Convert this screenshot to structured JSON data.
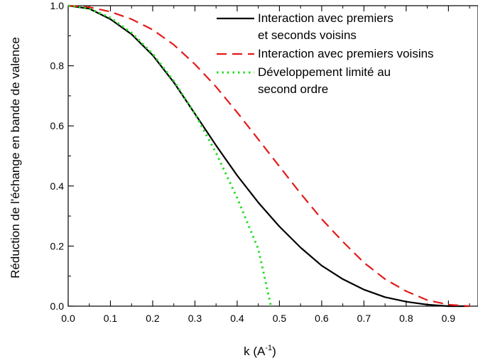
{
  "chart_data": {
    "type": "line",
    "xlabel": "k (A",
    "xlabel_sup": "-1",
    "xlabel_close": ")",
    "ylabel": "Réduction de l'échange en bande de valence",
    "xlim": [
      0.0,
      0.97
    ],
    "ylim": [
      0.0,
      1.0
    ],
    "grid": false,
    "legend_position": "top-right",
    "x_ticks": [
      0.0,
      0.1,
      0.2,
      0.3,
      0.4,
      0.5,
      0.6,
      0.7,
      0.8,
      0.9
    ],
    "x_tick_labels": [
      "0.0",
      "0.1",
      "0.2",
      "0.3",
      "0.4",
      "0.5",
      "0.6",
      "0.7",
      "0.8",
      "0.9"
    ],
    "y_ticks": [
      0.0,
      0.2,
      0.4,
      0.6,
      0.8,
      1.0
    ],
    "y_tick_labels": [
      "0.0",
      "0.2",
      "0.4",
      "0.6",
      "0.8",
      "1.0"
    ],
    "series": [
      {
        "name_lines": [
          "Interaction avec premiers",
          "et seconds voisins"
        ],
        "style": "solid",
        "color": "#000000",
        "x": [
          0.0,
          0.05,
          0.1,
          0.15,
          0.2,
          0.25,
          0.3,
          0.35,
          0.4,
          0.45,
          0.5,
          0.55,
          0.6,
          0.65,
          0.7,
          0.75,
          0.8,
          0.85,
          0.9,
          0.95
        ],
        "y": [
          1.0,
          0.99,
          0.955,
          0.905,
          0.835,
          0.745,
          0.64,
          0.535,
          0.435,
          0.345,
          0.265,
          0.195,
          0.135,
          0.09,
          0.055,
          0.03,
          0.015,
          0.005,
          0.0,
          0.0
        ]
      },
      {
        "name_lines": [
          "Interaction avec premiers voisins"
        ],
        "style": "dashed",
        "color": "#e41a1a",
        "x": [
          0.0,
          0.05,
          0.1,
          0.15,
          0.2,
          0.25,
          0.3,
          0.35,
          0.4,
          0.45,
          0.5,
          0.55,
          0.6,
          0.65,
          0.7,
          0.75,
          0.8,
          0.85,
          0.9,
          0.95
        ],
        "y": [
          1.0,
          0.995,
          0.98,
          0.955,
          0.92,
          0.87,
          0.805,
          0.73,
          0.645,
          0.555,
          0.465,
          0.375,
          0.29,
          0.215,
          0.145,
          0.09,
          0.05,
          0.02,
          0.005,
          0.0
        ]
      },
      {
        "name_lines": [
          "Développement limité au",
          "second ordre"
        ],
        "style": "dotted",
        "color": "#22dd22",
        "x": [
          0.0,
          0.05,
          0.1,
          0.15,
          0.2,
          0.25,
          0.3,
          0.35,
          0.4,
          0.45,
          0.48
        ],
        "y": [
          1.0,
          0.99,
          0.96,
          0.91,
          0.84,
          0.75,
          0.64,
          0.51,
          0.36,
          0.19,
          0.0
        ]
      }
    ]
  }
}
